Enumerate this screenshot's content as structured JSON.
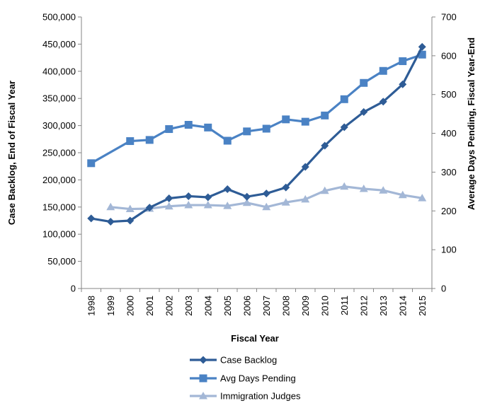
{
  "chart_data": {
    "type": "line",
    "xlabel": "Fiscal Year",
    "ylabel_left": "Case Backlog, End of Fiscal Year",
    "ylabel_right": "Average Days Pending, Fiscal Year-End",
    "categories": [
      "1998",
      "1999",
      "2000",
      "2001",
      "2002",
      "2003",
      "2004",
      "2005",
      "2006",
      "2007",
      "2008",
      "2009",
      "2010",
      "2011",
      "2012",
      "2013",
      "2014",
      "2015"
    ],
    "left_axis": {
      "ylim": [
        0,
        500000
      ],
      "ticks": [
        0,
        50000,
        100000,
        150000,
        200000,
        250000,
        300000,
        350000,
        400000,
        450000,
        500000
      ],
      "tick_labels": [
        "0",
        "50,000",
        "100,000",
        "150,000",
        "200,000",
        "250,000",
        "300,000",
        "350,000",
        "400,000",
        "450,000",
        "500,000"
      ]
    },
    "right_axis": {
      "ylim": [
        0,
        700
      ],
      "ticks": [
        0,
        100,
        200,
        300,
        400,
        500,
        600,
        700
      ],
      "tick_labels": [
        "0",
        "100",
        "200",
        "300",
        "400",
        "500",
        "600",
        "700"
      ]
    },
    "grid": false,
    "legend_position": "bottom",
    "series": [
      {
        "name": "Case Backlog",
        "axis": "left",
        "marker": "diamond",
        "color": "#2e5c96",
        "values": [
          129000,
          123000,
          125000,
          149000,
          166000,
          170000,
          168000,
          183000,
          169000,
          175000,
          186000,
          224000,
          263000,
          297000,
          325000,
          344000,
          376000,
          445000
        ]
      },
      {
        "name": "Avg Days Pending",
        "axis": "right",
        "marker": "square",
        "color": "#4a82c4",
        "values": [
          323,
          null,
          380,
          383,
          411,
          422,
          415,
          381,
          405,
          412,
          436,
          430,
          446,
          488,
          530,
          561,
          586,
          603
        ]
      },
      {
        "name": "Immigration Judges",
        "axis": "right",
        "marker": "triangle",
        "color": "#a3b7d6",
        "values": [
          null,
          210,
          205,
          206,
          212,
          215,
          215,
          213,
          221,
          210,
          222,
          230,
          252,
          263,
          257,
          253,
          241,
          233
        ]
      }
    ]
  }
}
